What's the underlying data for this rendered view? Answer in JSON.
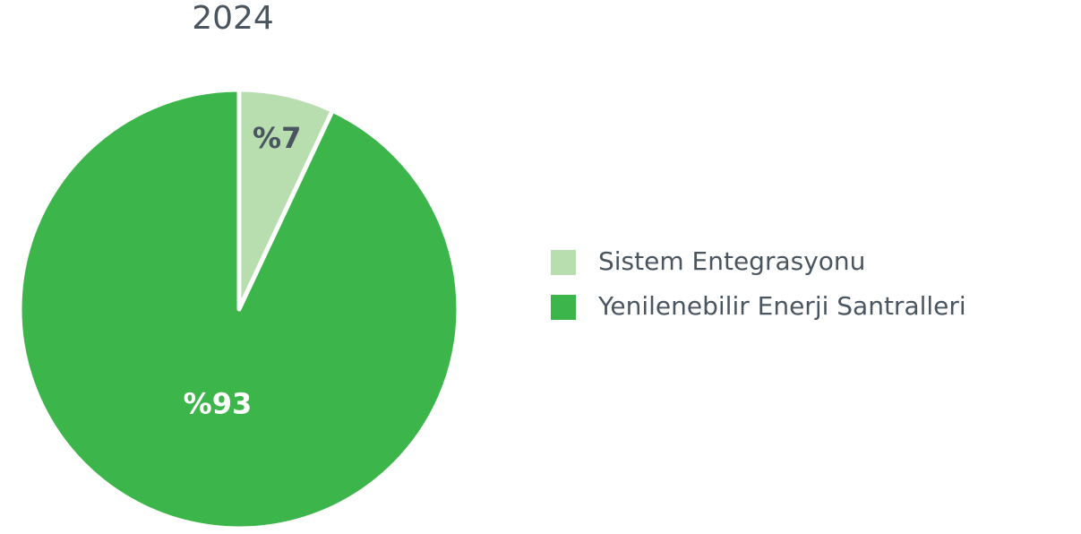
{
  "chart_data": {
    "type": "pie",
    "title": "2024",
    "categories": [
      "Sistem Entegrasyonu",
      "Yenilenebilir Enerji Santralleri"
    ],
    "values": [
      7,
      93
    ],
    "value_labels": [
      "%7",
      "%93"
    ],
    "colors": [
      "#b8ddaf",
      "#3cb54a"
    ]
  }
}
